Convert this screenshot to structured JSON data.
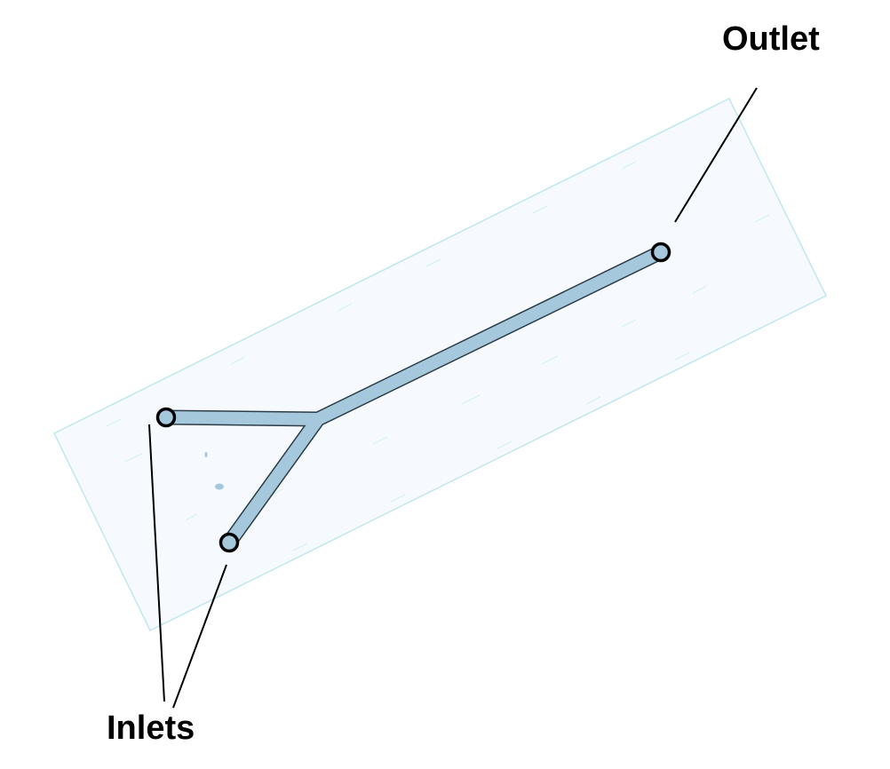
{
  "diagram": {
    "labels": {
      "outlet": "Outlet",
      "inlets": "Inlets"
    },
    "colors": {
      "background": "#ffffff",
      "chip_fill": "#f6faff",
      "chip_edge": "#bfe8ee",
      "channel": "#a6c8dc",
      "channel_edge": "#2b3d47",
      "port_fill": "#a6c8dc",
      "port_stroke": "#000000",
      "leader_line": "#000000",
      "text": "#000000"
    }
  }
}
